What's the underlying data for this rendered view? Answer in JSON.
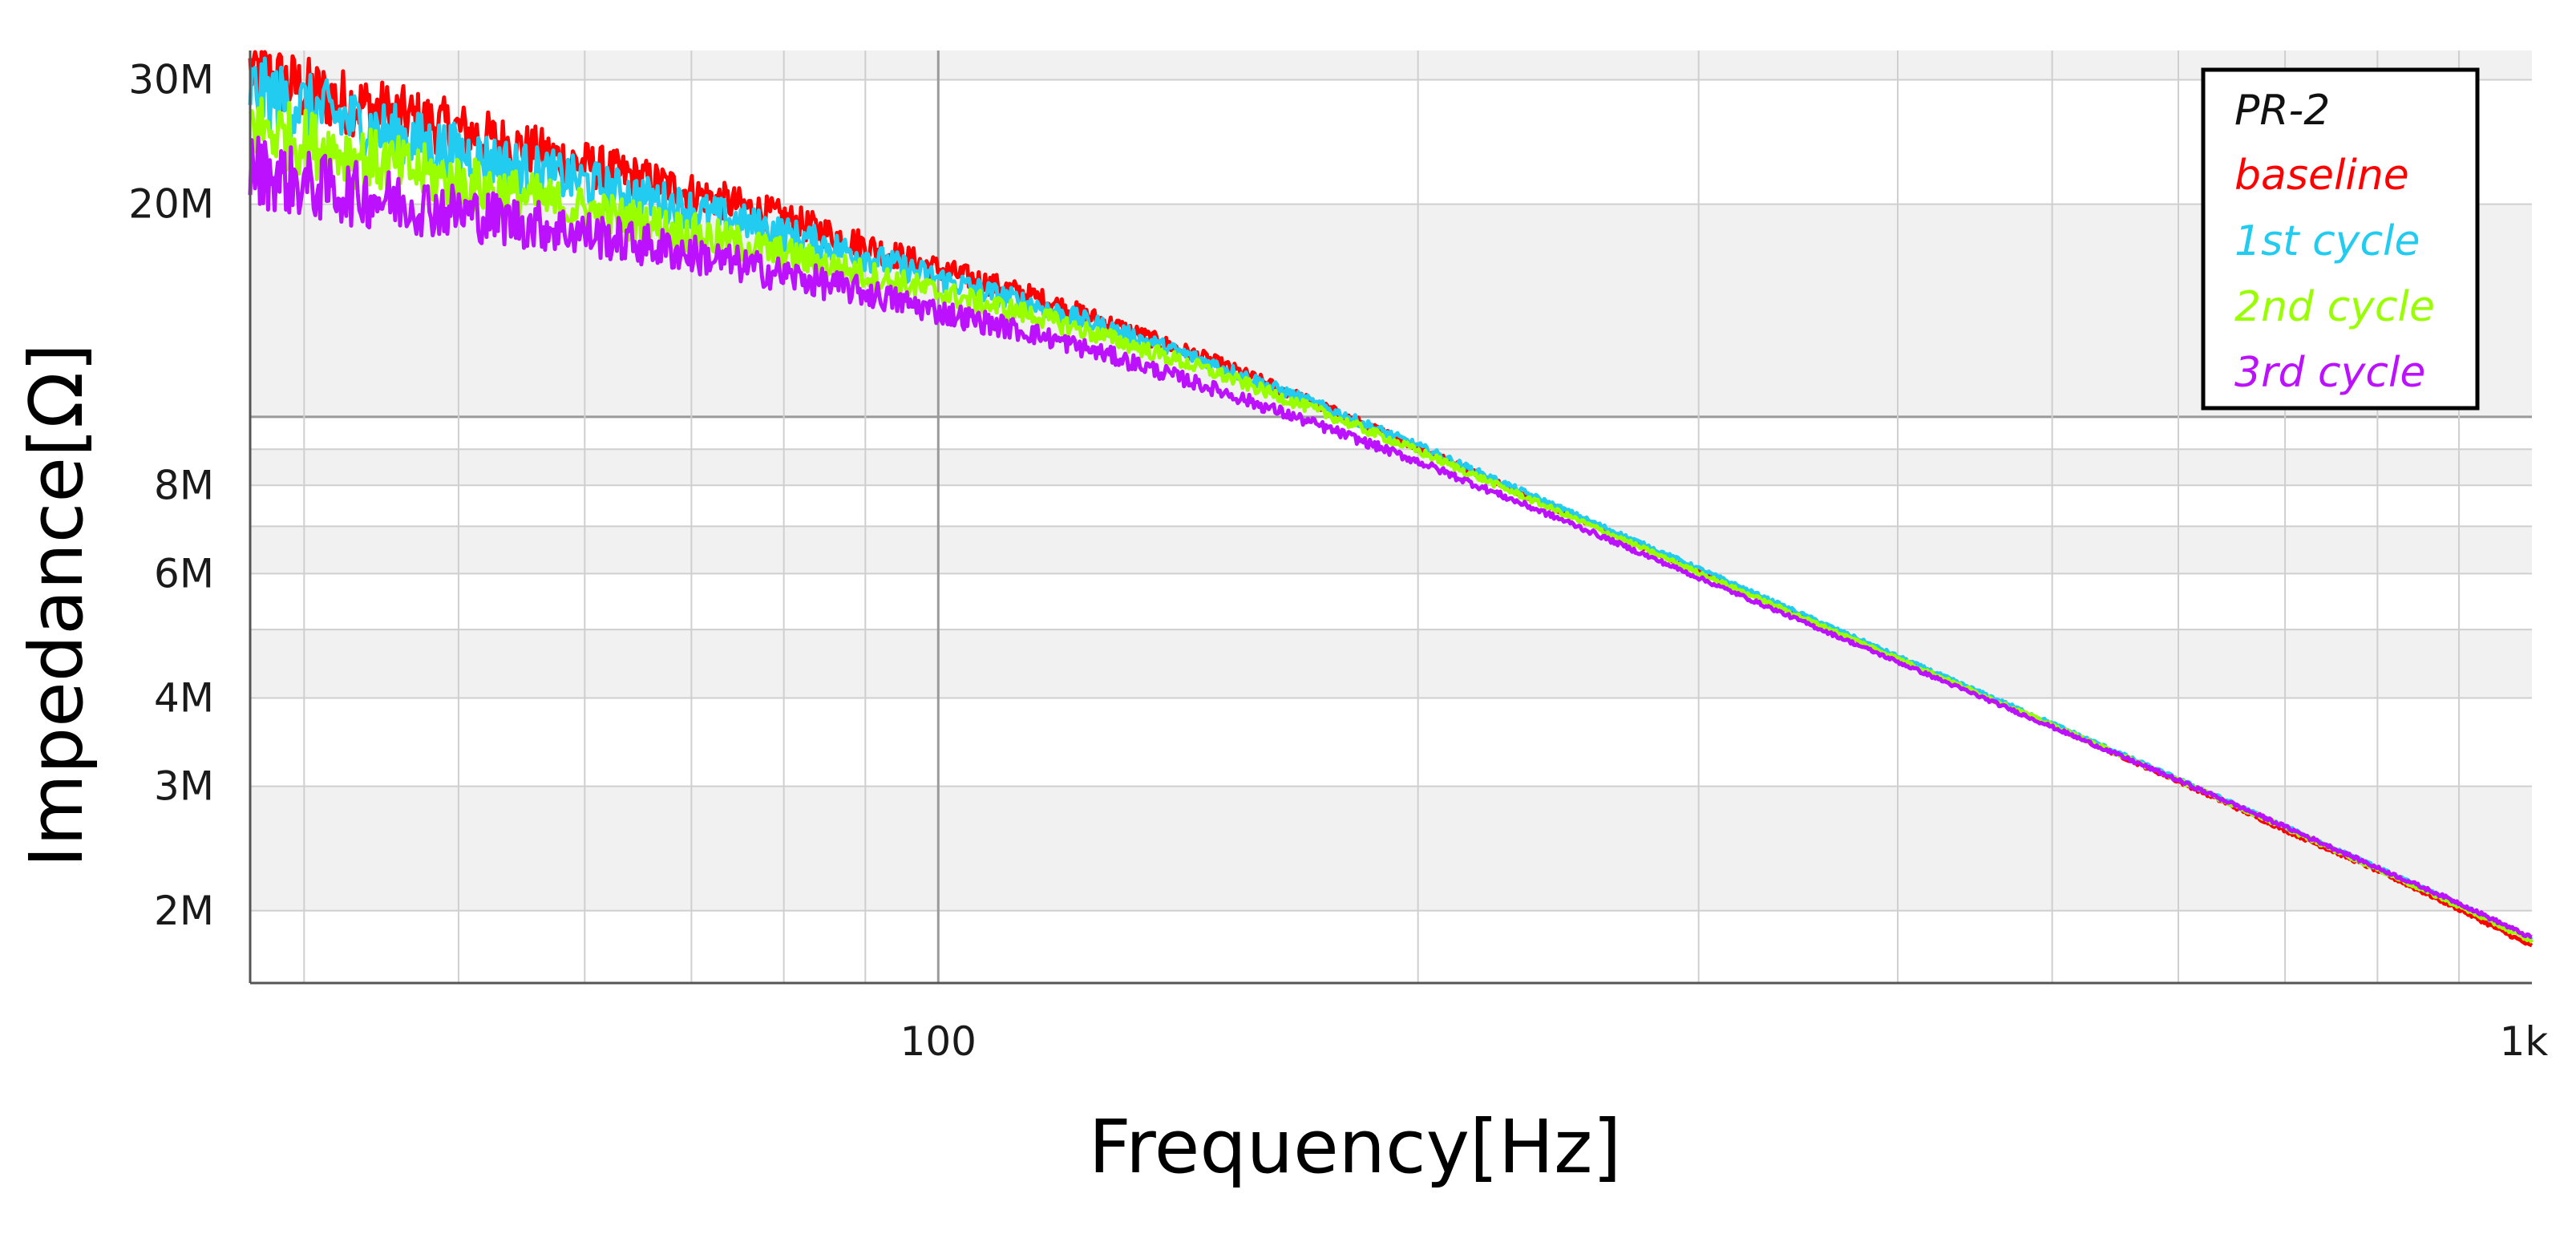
{
  "chart_data": {
    "type": "line",
    "title": "",
    "xlabel": "Frequency[Hz]",
    "ylabel": "Impedance[Ω]",
    "x_scale": "log",
    "y_scale": "log",
    "xlim": [
      37,
      1000
    ],
    "ylim": [
      1580000,
      33000000
    ],
    "grid": true,
    "legend_placement": "top-right",
    "legend_title": "PR-2",
    "x_ticks": [
      {
        "value": 100,
        "label": "100"
      },
      {
        "value": 1000,
        "label": "1k"
      }
    ],
    "y_ticks": [
      {
        "value": 30000000,
        "label": "30M"
      },
      {
        "value": 20000000,
        "label": "20M"
      },
      {
        "value": 8000000,
        "label": "8M"
      },
      {
        "value": 6000000,
        "label": "6M"
      },
      {
        "value": 4000000,
        "label": "4M"
      },
      {
        "value": 3000000,
        "label": "3M"
      },
      {
        "value": 2000000,
        "label": "2M"
      }
    ],
    "series": [
      {
        "name": "baseline",
        "color": "#ff0000",
        "x": [
          37,
          40,
          45,
          50,
          55,
          60,
          70,
          80,
          90,
          100,
          115,
          130,
          150,
          175,
          200,
          250,
          300,
          400,
          500,
          600,
          700,
          800,
          900,
          1000
        ],
        "y": [
          31000000,
          29000000,
          27000000,
          25500000,
          24000000,
          22800000,
          20800000,
          19100000,
          17500000,
          16200000,
          14800000,
          13400000,
          11900000,
          10300000,
          9050000,
          7250000,
          6050000,
          4550000,
          3650000,
          3050000,
          2600000,
          2280000,
          2010000,
          1780000
        ]
      },
      {
        "name": "1st cycle",
        "color": "#22ccf0",
        "x": [
          37,
          40,
          45,
          50,
          55,
          60,
          70,
          80,
          90,
          100,
          115,
          130,
          150,
          175,
          200,
          250,
          300,
          400,
          500,
          600,
          700,
          800,
          900,
          1000
        ],
        "y": [
          29000000,
          27500000,
          25300000,
          23700000,
          22500000,
          21500000,
          19700000,
          18200000,
          16900000,
          15700000,
          14400000,
          13200000,
          11800000,
          10300000,
          9100000,
          7300000,
          6100000,
          4580000,
          3680000,
          3070000,
          2630000,
          2300000,
          2040000,
          1820000
        ]
      },
      {
        "name": "2nd cycle",
        "color": "#99ff00",
        "x": [
          37,
          40,
          45,
          50,
          55,
          60,
          70,
          80,
          90,
          100,
          115,
          130,
          150,
          175,
          200,
          250,
          300,
          400,
          500,
          600,
          700,
          800,
          900,
          1000
        ],
        "y": [
          26000000,
          24500000,
          22800000,
          21500000,
          20500000,
          19600000,
          18200000,
          17000000,
          15900000,
          15000000,
          13900000,
          12800000,
          11500000,
          10100000,
          8950000,
          7200000,
          6020000,
          4550000,
          3660000,
          3060000,
          2620000,
          2290000,
          2030000,
          1810000
        ]
      },
      {
        "name": "3rd cycle",
        "color": "#bb11ff",
        "x": [
          37,
          40,
          45,
          50,
          55,
          60,
          70,
          80,
          90,
          100,
          115,
          130,
          150,
          175,
          200,
          250,
          300,
          400,
          500,
          600,
          700,
          800,
          900,
          1000
        ],
        "y": [
          22500000,
          21300000,
          20300000,
          19500000,
          18800000,
          18200000,
          17000000,
          15900000,
          15000000,
          14100000,
          13100000,
          12100000,
          10900000,
          9650000,
          8650000,
          7050000,
          5920000,
          4500000,
          3640000,
          3060000,
          2630000,
          2300000,
          2050000,
          1830000
        ]
      }
    ]
  }
}
